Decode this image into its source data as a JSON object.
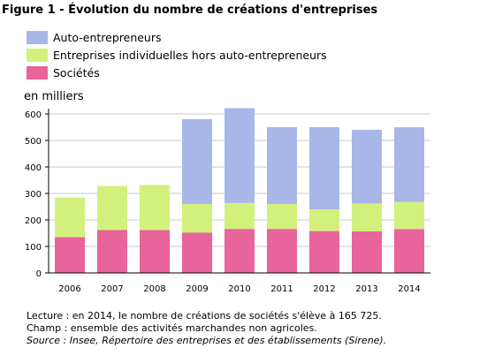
{
  "figure": {
    "title": "Figure 1 - Évolution du nombre de créations d'entreprises",
    "unit_label": "en milliers"
  },
  "notes": {
    "lecture": "Lecture : en 2014, le nombre de créations de sociétés s'élève à 165 725.",
    "champ": "Champ : ensemble des activités marchandes non agricoles.",
    "source": "Source : Insee, Répertoire des entreprises et des établissements (Sirene)."
  },
  "colors": {
    "grid": "#c8c8c8",
    "axis": "#000000",
    "background": "#ffffff"
  },
  "chart_data": {
    "type": "bar",
    "stacked": true,
    "title": "",
    "xlabel": "",
    "ylabel": "en milliers",
    "ylim": [
      0,
      600
    ],
    "yticks": [
      0,
      100,
      200,
      300,
      400,
      500,
      600
    ],
    "grid": true,
    "legend_position": "top-left",
    "categories": [
      "2006",
      "2007",
      "2008",
      "2009",
      "2010",
      "2011",
      "2012",
      "2013",
      "2014"
    ],
    "series": [
      {
        "name": "Sociétés",
        "color": "#e8649a",
        "values": [
          135,
          162,
          162,
          152,
          166,
          166,
          158,
          157,
          165.725
        ]
      },
      {
        "name": "Entreprises individuelles hors auto-entrepreneurs",
        "color": "#d4f07c",
        "values": [
          150,
          166,
          170,
          108,
          98,
          94,
          82,
          105,
          102
        ]
      },
      {
        "name": "Auto-entrepreneurs",
        "color": "#a8b6e8",
        "values": [
          0,
          0,
          0,
          320,
          358,
          290,
          310,
          278,
          282
        ]
      }
    ],
    "legend_order": [
      "Auto-entrepreneurs",
      "Entreprises individuelles hors auto-entrepreneurs",
      "Sociétés"
    ]
  }
}
